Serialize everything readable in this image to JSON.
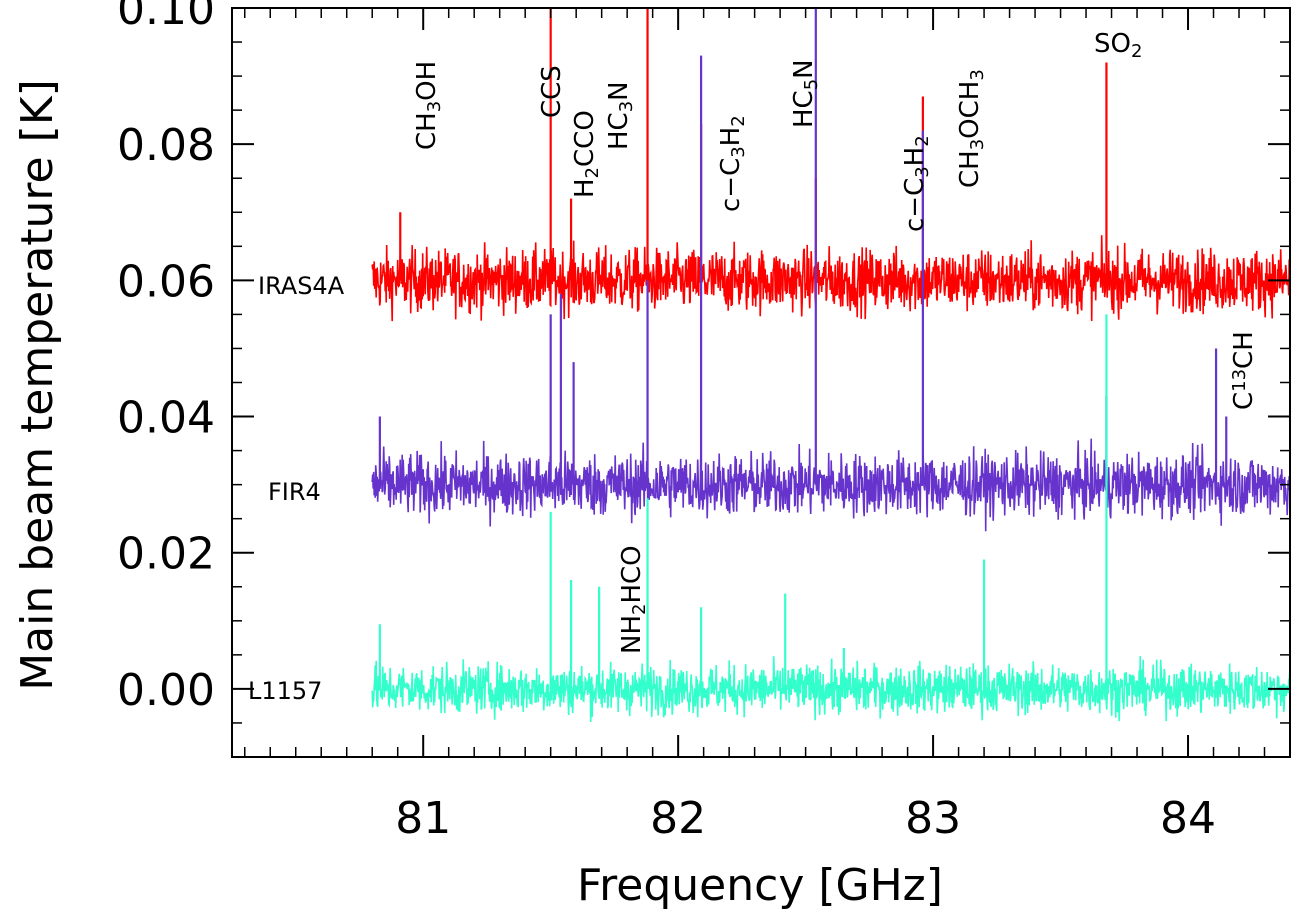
{
  "chart_data": {
    "type": "line",
    "xlabel": "Frequency [GHz]",
    "ylabel": "Main beam temperature [K]",
    "xlim": [
      80.25,
      84.4
    ],
    "ylim": [
      -0.01,
      0.1
    ],
    "x_ticks": [
      "81",
      "82",
      "83",
      "84"
    ],
    "y_ticks": [
      "0.00",
      "0.02",
      "0.04",
      "0.06",
      "0.08",
      "0.10"
    ],
    "x_tick_values": [
      81,
      82,
      83,
      84
    ],
    "y_tick_values": [
      0.0,
      0.02,
      0.04,
      0.06,
      0.08,
      0.1
    ],
    "x_start": 80.8,
    "series": [
      {
        "name": "IRAS4A",
        "color": "#ff0000",
        "baseline": 0.06,
        "noise": 0.0045,
        "lines": [
          [
            80.91,
            0.07
          ],
          [
            81.5,
            0.105
          ],
          [
            81.58,
            0.072
          ],
          [
            81.88,
            0.105
          ],
          [
            82.09,
            0.083
          ],
          [
            82.54,
            0.075
          ],
          [
            82.96,
            0.087
          ],
          [
            83.68,
            0.092
          ]
        ]
      },
      {
        "name": "FIR4",
        "color": "#6633cc",
        "baseline": 0.03,
        "noise": 0.0045,
        "lines": [
          [
            80.83,
            0.04
          ],
          [
            81.5,
            0.055
          ],
          [
            81.54,
            0.058
          ],
          [
            81.59,
            0.048
          ],
          [
            81.88,
            0.06
          ],
          [
            82.09,
            0.093
          ],
          [
            82.54,
            0.105
          ],
          [
            82.96,
            0.082
          ],
          [
            83.68,
            0.043
          ],
          [
            84.11,
            0.05
          ],
          [
            84.15,
            0.04
          ]
        ]
      },
      {
        "name": "L1157",
        "color": "#33ffcc",
        "baseline": 0.0,
        "noise": 0.0035,
        "lines": [
          [
            80.83,
            0.0095
          ],
          [
            81.5,
            0.026
          ],
          [
            81.58,
            0.016
          ],
          [
            81.69,
            0.015
          ],
          [
            81.88,
            0.028
          ],
          [
            82.09,
            0.012
          ],
          [
            82.42,
            0.014
          ],
          [
            82.65,
            0.006
          ],
          [
            83.2,
            0.019
          ],
          [
            83.68,
            0.055
          ]
        ]
      }
    ],
    "source_labels": [
      "IRAS4A",
      "FIR4",
      "L1157"
    ],
    "line_labels": [
      {
        "text": "CH3OH",
        "x": 80.91
      },
      {
        "text": "CCS",
        "x": 81.43
      },
      {
        "text": "H2CCO",
        "x": 81.58
      },
      {
        "text": "HC3N",
        "x": 81.69
      },
      {
        "text": "c-C3H2",
        "x": 82.09
      },
      {
        "text": "HC5N",
        "x": 82.44
      },
      {
        "text": "c-C3H2",
        "x": 82.96
      },
      {
        "text": "CH3OCH3",
        "x": 83.1
      },
      {
        "text": "SO2",
        "x": 83.68
      },
      {
        "text": "NH2HCO",
        "x": 81.78
      },
      {
        "text": "C13CH",
        "x": 84.19
      }
    ]
  }
}
